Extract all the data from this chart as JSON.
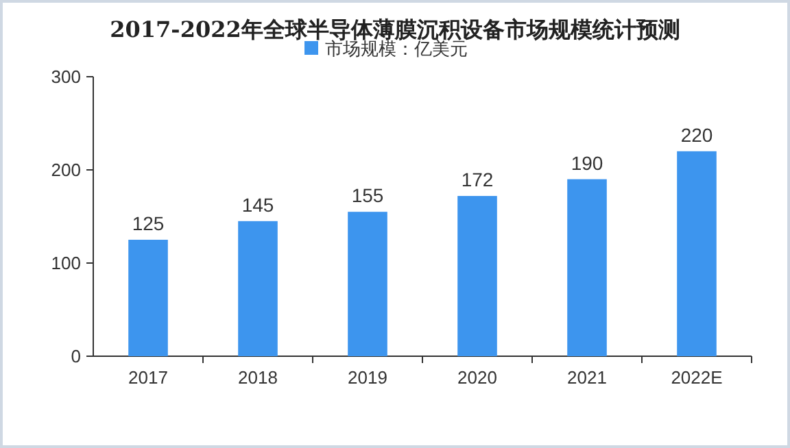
{
  "chart_data": {
    "type": "bar",
    "title": "2017-2022年全球半导体薄膜沉积设备市场规模统计预测",
    "categories": [
      "2017",
      "2018",
      "2019",
      "2020",
      "2021",
      "2022E"
    ],
    "series": [
      {
        "name": "市场规模：亿美元",
        "color": "#3d95ee",
        "values": [
          125,
          145,
          155,
          172,
          190,
          220
        ]
      }
    ],
    "ylim": [
      0,
      300
    ],
    "yticks": [
      0,
      100,
      200,
      300
    ],
    "data_labels": true,
    "legend": "top",
    "grid": false
  }
}
